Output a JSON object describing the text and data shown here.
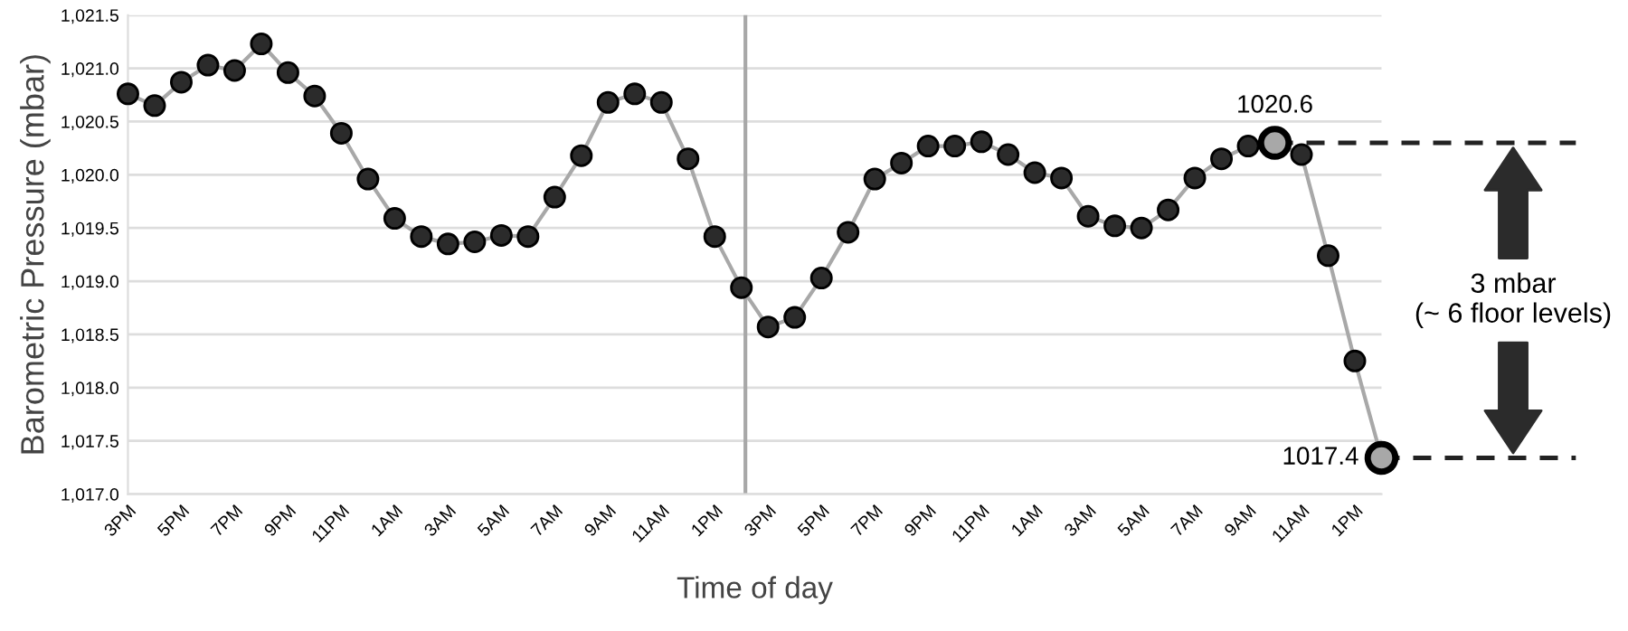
{
  "chart_data": {
    "type": "line",
    "xlabel": "Time of day",
    "ylabel": "Barometric Pressure (mbar)",
    "categories": [
      "3PM",
      null,
      "5PM",
      null,
      "7PM",
      null,
      "9PM",
      null,
      "11PM",
      null,
      "1AM",
      null,
      "3AM",
      null,
      "5AM",
      null,
      "7AM",
      null,
      "9AM",
      null,
      "11AM",
      null,
      "1PM",
      null,
      "3PM",
      null,
      "5PM",
      null,
      "7PM",
      null,
      "9PM",
      null,
      "11PM",
      null,
      "1AM",
      null,
      "3AM",
      null,
      "5AM",
      null,
      "7AM",
      null,
      "9AM",
      null,
      "11AM",
      null,
      "1PM",
      null
    ],
    "series": [
      {
        "color": "#2b2b2b",
        "marker": "circle",
        "values": [
          1020.76,
          1020.65,
          1020.87,
          1021.03,
          1020.98,
          1021.23,
          1020.96,
          1020.74,
          1020.39,
          1019.96,
          1019.59,
          1019.42,
          1019.35,
          1019.37,
          1019.43,
          1019.42,
          1019.79,
          1020.18,
          1020.68,
          1020.76,
          1020.68,
          1020.15,
          1019.42,
          1018.94,
          1018.57,
          1018.66,
          1019.03,
          1019.46,
          1019.96,
          1020.11,
          1020.27,
          1020.27,
          1020.31,
          1020.19,
          1020.02,
          1019.97,
          1019.61,
          1019.52,
          1019.5,
          1019.67,
          1019.97,
          1020.15,
          1020.27,
          1020.3,
          1020.19,
          1019.24,
          1018.25,
          1017.34
        ],
        "colors": [
          "#2b2b2b",
          "#2b2b2b",
          "#2b2b2b",
          "#2b2b2b",
          "#2b2b2b",
          "#2b2b2b",
          "#2b2b2b",
          "#2b2b2b",
          "#2b2b2b",
          "#2b2b2b",
          "#2b2b2b",
          "#2b2b2b",
          "#2b2b2b",
          "#2b2b2b",
          "#2b2b2b",
          "#2b2b2b",
          "#2b2b2b",
          "#2b2b2b",
          "#2b2b2b",
          "#2b2b2b",
          "#2b2b2b",
          "#2b2b2b",
          "#2b2b2b",
          "#2b2b2b",
          "#2b2b2b",
          "#2b2b2b",
          "#2b2b2b",
          "#2b2b2b",
          "#2b2b2b",
          "#2b2b2b",
          "#2b2b2b",
          "#2b2b2b",
          "#2b2b2b",
          "#2b2b2b",
          "#2b2b2b",
          "#2b2b2b",
          "#2b2b2b",
          "#2b2b2b",
          "#2b2b2b",
          "#2b2b2b",
          "#2b2b2b",
          "#2b2b2b",
          "#2b2b2b",
          "#a8a8a8",
          "#2b2b2b",
          "#2b2b2b",
          "#2b2b2b",
          "#a8a8a8"
        ]
      }
    ],
    "ylim": [
      1017.0,
      1021.5
    ],
    "yticks": [
      {
        "value": 1017.0,
        "label": "1,017.0"
      },
      {
        "value": 1017.5,
        "label": "1,017.5"
      },
      {
        "value": 1018.0,
        "label": "1,018.0"
      },
      {
        "value": 1018.5,
        "label": "1,018.5"
      },
      {
        "value": 1019.0,
        "label": "1,019.0"
      },
      {
        "value": 1019.5,
        "label": "1,019.5"
      },
      {
        "value": 1020.0,
        "label": "1,020.0"
      },
      {
        "value": 1020.5,
        "label": "1,020.5"
      },
      {
        "value": 1021.0,
        "label": "1,021.0"
      },
      {
        "value": 1021.5,
        "label": "1,021.5"
      }
    ],
    "grid": "y",
    "line_style": "solid",
    "annotations": [
      "1020.6",
      "1017.4",
      "3 mbar\n(~ 6 floor levels)"
    ]
  }
}
